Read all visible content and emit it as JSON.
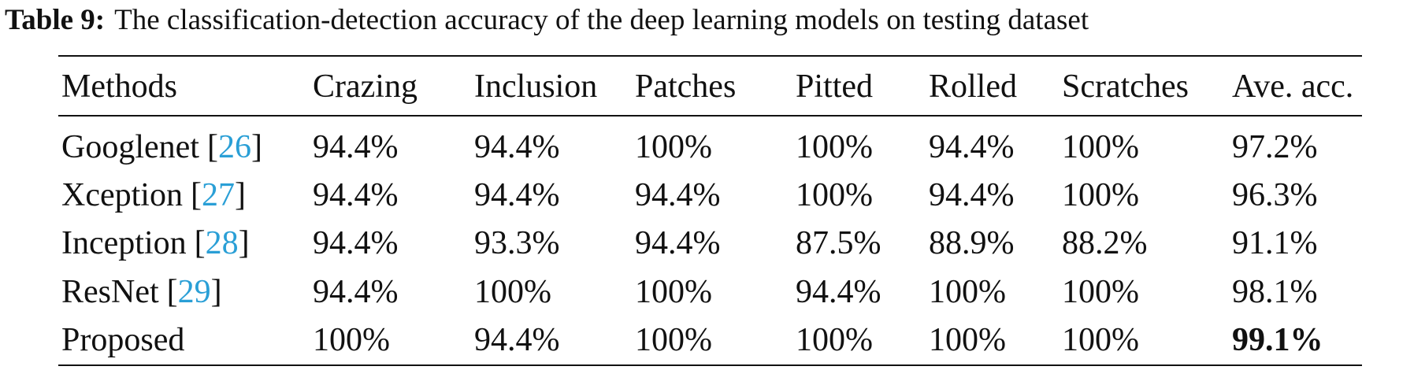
{
  "caption": {
    "label": "Table 9:",
    "text": "The classification-detection accuracy of the deep learning models on testing dataset"
  },
  "table": {
    "columns": [
      "Methods",
      "Crazing",
      "Inclusion",
      "Patches",
      "Pitted",
      "Rolled",
      "Scratches",
      "Ave. acc."
    ],
    "rows": [
      {
        "method": "Googlenet",
        "ref": "[26]",
        "values": [
          "94.4%",
          "94.4%",
          "100%",
          "100%",
          "94.4%",
          "100%",
          "97.2%"
        ]
      },
      {
        "method": "Xception",
        "ref": "[27]",
        "values": [
          "94.4%",
          "94.4%",
          "94.4%",
          "100%",
          "94.4%",
          "100%",
          "96.3%"
        ]
      },
      {
        "method": "Inception",
        "ref": "[28]",
        "values": [
          "94.4%",
          "93.3%",
          "94.4%",
          "87.5%",
          "88.9%",
          "88.2%",
          "91.1%"
        ]
      },
      {
        "method": "ResNet",
        "ref": "[29]",
        "values": [
          "94.4%",
          "100%",
          "100%",
          "94.4%",
          "100%",
          "100%",
          "98.1%"
        ]
      },
      {
        "method": "Proposed",
        "ref": null,
        "values": [
          "100%",
          "94.4%",
          "100%",
          "100%",
          "100%",
          "100%",
          "99.1%"
        ]
      }
    ]
  }
}
